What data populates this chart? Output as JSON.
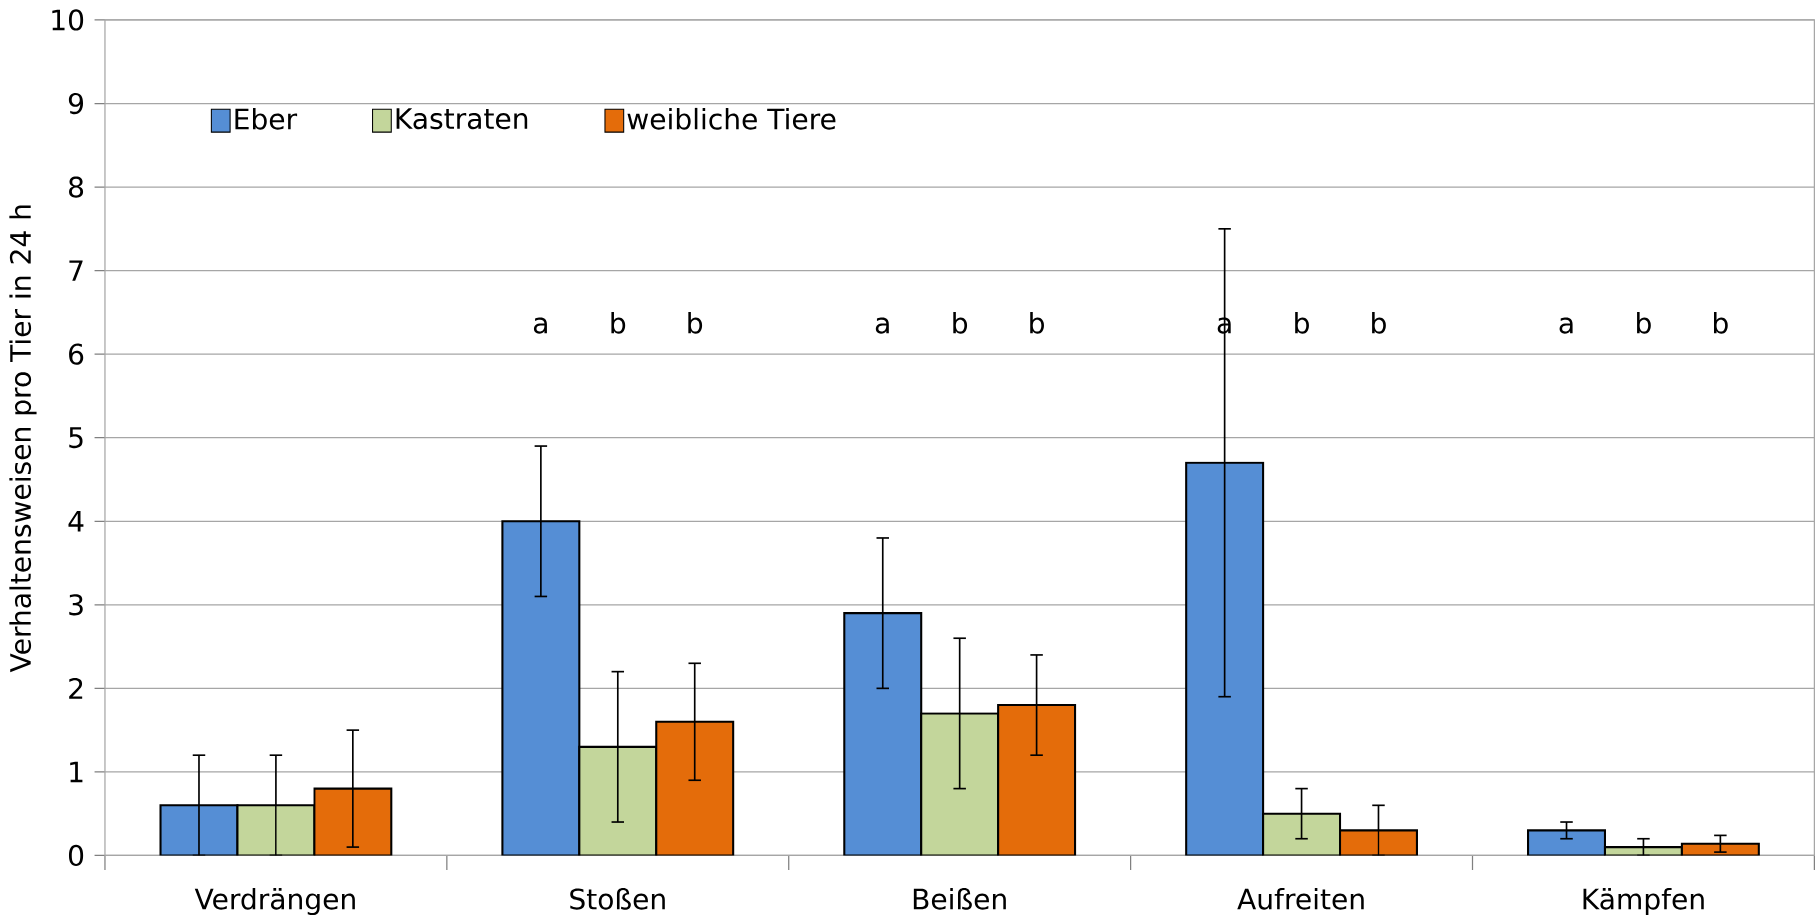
{
  "chart_data": {
    "type": "bar",
    "ylabel": "Verhaltensweisen pro Tier in 24 h",
    "categories": [
      "Verdrängen",
      "Stoßen",
      "Beißen",
      "Aufreiten",
      "Kämpfen"
    ],
    "series": [
      {
        "name": "Eber",
        "color": "#558ed5",
        "values": [
          0.6,
          4.0,
          2.9,
          4.7,
          0.3
        ],
        "errors": [
          0.6,
          0.9,
          0.9,
          2.8,
          0.1
        ]
      },
      {
        "name": "Kastraten",
        "color": "#c3d69b",
        "values": [
          0.6,
          1.3,
          1.7,
          0.5,
          0.1
        ],
        "errors": [
          0.6,
          0.9,
          0.9,
          0.3,
          0.1
        ]
      },
      {
        "name": "weibliche Tiere",
        "color": "#e46c0a",
        "values": [
          0.8,
          1.6,
          1.8,
          0.3,
          0.14
        ],
        "errors": [
          0.7,
          0.7,
          0.6,
          0.3,
          0.1
        ]
      }
    ],
    "ylim": [
      0,
      10
    ],
    "yticks": [
      0,
      1,
      2,
      3,
      4,
      5,
      6,
      7,
      8,
      9,
      10
    ],
    "grid": "y",
    "legend": "top left",
    "annotations": [
      "a",
      "b",
      "b",
      "a",
      "b",
      "b",
      "a",
      "b",
      "b",
      "a",
      "b",
      "b"
    ]
  }
}
